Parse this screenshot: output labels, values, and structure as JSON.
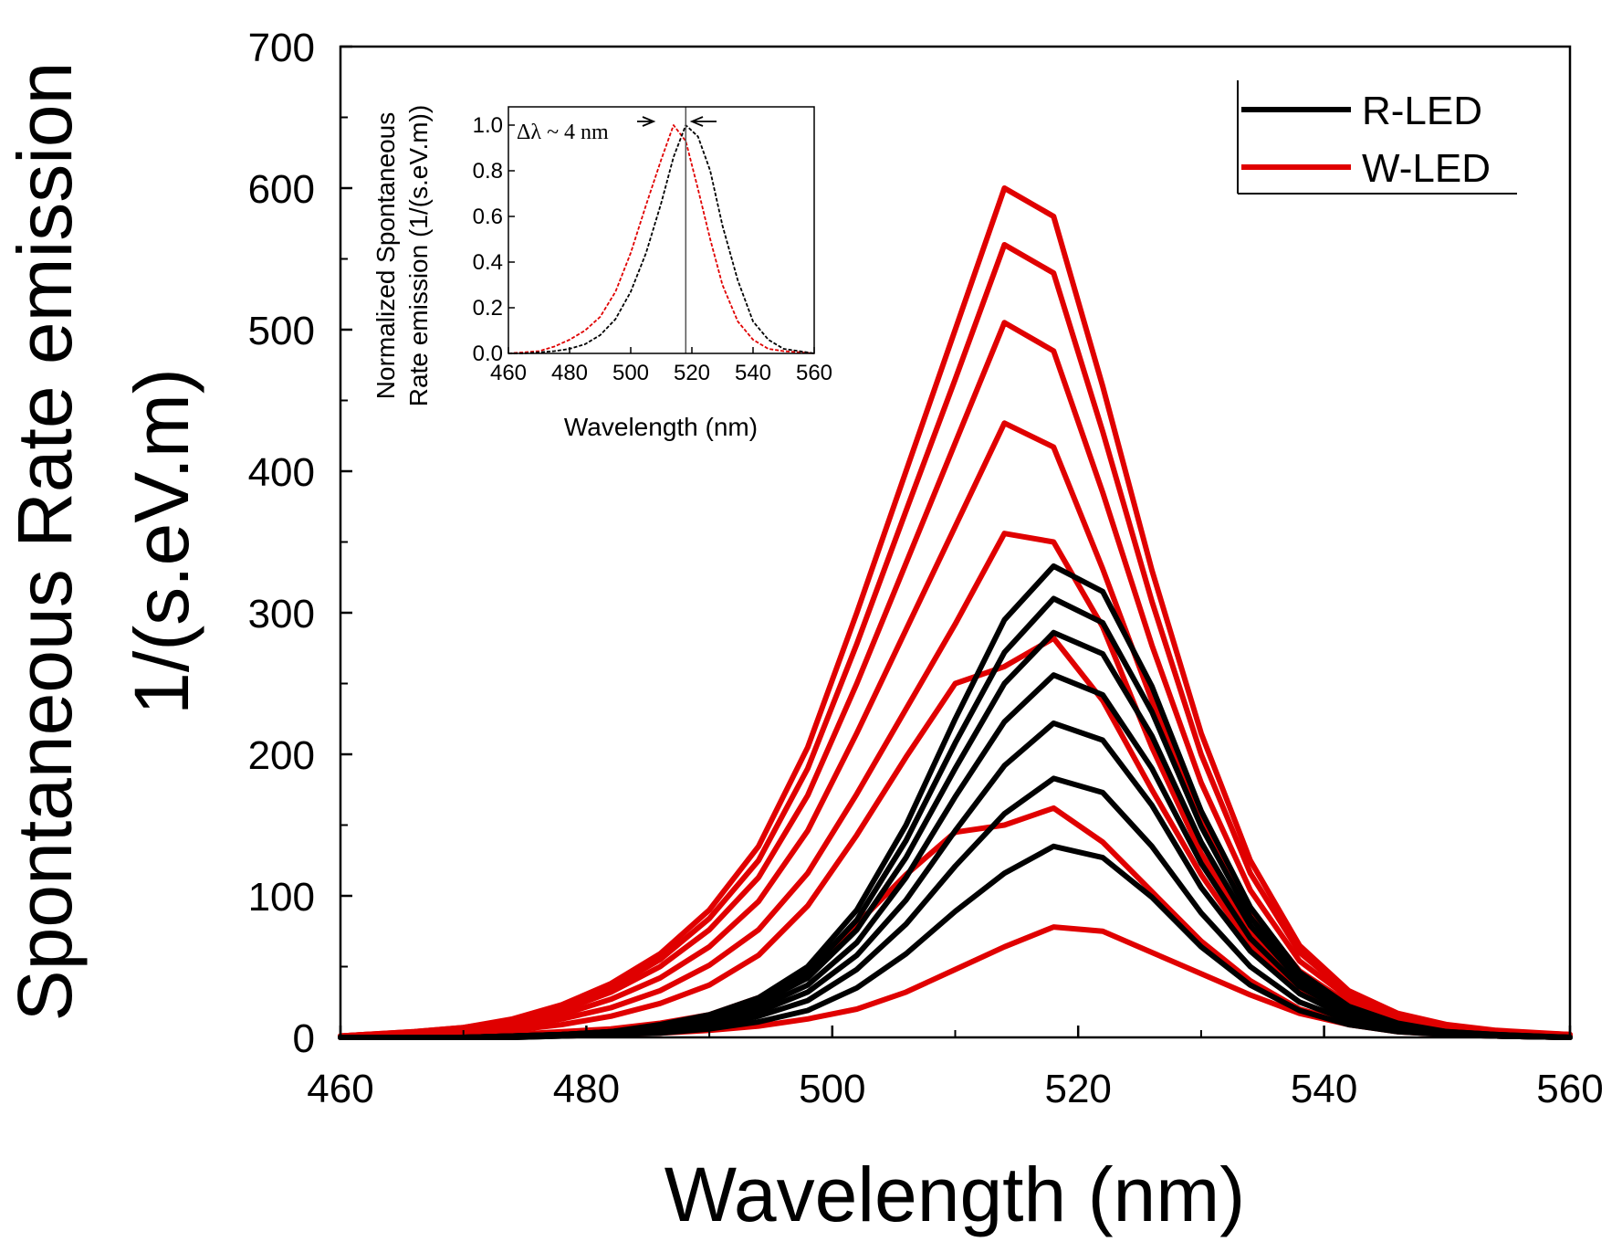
{
  "chart_data": [
    {
      "type": "line",
      "role": "main",
      "title": "",
      "xlabel": "Wavelength (nm)",
      "ylabel_lines": [
        "Spontaneous Rate emission",
        "1/(s.eV.m)"
      ],
      "xlim": [
        460,
        560
      ],
      "ylim": [
        0,
        700
      ],
      "xticks": [
        460,
        480,
        500,
        520,
        540,
        560
      ],
      "yticks": [
        0,
        100,
        200,
        300,
        400,
        500,
        600,
        700
      ],
      "legend": {
        "position": "top-right",
        "items": [
          {
            "label": "R-LED",
            "color": "#000000"
          },
          {
            "label": "W-LED",
            "color": "#e00000"
          }
        ]
      },
      "x": [
        460,
        462,
        466,
        470,
        474,
        478,
        482,
        486,
        490,
        494,
        498,
        502,
        506,
        510,
        514,
        518,
        522,
        526,
        530,
        534,
        538,
        542,
        546,
        550,
        554,
        560
      ],
      "series": [
        {
          "name": "W-LED",
          "color": "#e00000",
          "values": [
            1,
            2,
            4,
            7,
            13,
            23,
            38,
            59,
            90,
            135,
            205,
            300,
            400,
            500,
            600,
            580,
            460,
            330,
            215,
            125,
            65,
            33,
            17,
            9,
            5,
            2
          ]
        },
        {
          "name": "W-LED",
          "color": "#e00000",
          "values": [
            1,
            2,
            4,
            7,
            12,
            21,
            35,
            55,
            84,
            125,
            190,
            278,
            372,
            465,
            560,
            540,
            428,
            308,
            200,
            116,
            60,
            31,
            16,
            8,
            4,
            2
          ]
        },
        {
          "name": "W-LED",
          "color": "#e00000",
          "values": [
            1,
            2,
            3,
            6,
            11,
            19,
            32,
            50,
            76,
            113,
            171,
            250,
            335,
            420,
            505,
            485,
            385,
            277,
            180,
            104,
            54,
            28,
            14,
            7,
            4,
            2
          ]
        },
        {
          "name": "W-LED",
          "color": "#e00000",
          "values": [
            1,
            1,
            3,
            5,
            9,
            16,
            27,
            42,
            64,
            96,
            146,
            215,
            288,
            361,
            434,
            417,
            331,
            238,
            155,
            90,
            47,
            24,
            12,
            6,
            3,
            1
          ]
        },
        {
          "name": "W-LED",
          "color": "#e00000",
          "values": [
            0,
            1,
            2,
            4,
            7,
            13,
            21,
            33,
            51,
            76,
            116,
            172,
            232,
            292,
            356,
            350,
            290,
            205,
            130,
            75,
            40,
            20,
            10,
            5,
            3,
            1
          ]
        },
        {
          "name": "W-LED",
          "color": "#e00000",
          "values": [
            0,
            1,
            2,
            3,
            5,
            9,
            15,
            24,
            37,
            58,
            93,
            143,
            198,
            250,
            262,
            282,
            238,
            175,
            115,
            65,
            33,
            16,
            8,
            4,
            2,
            1
          ]
        },
        {
          "name": "W-LED",
          "color": "#e00000",
          "values": [
            0,
            0,
            1,
            1,
            2,
            4,
            6,
            10,
            16,
            28,
            48,
            80,
            115,
            145,
            150,
            162,
            138,
            103,
            68,
            40,
            20,
            10,
            5,
            2,
            1,
            0
          ]
        },
        {
          "name": "W-LED",
          "color": "#e00000",
          "values": [
            0,
            0,
            0,
            0,
            1,
            1,
            2,
            3,
            5,
            8,
            13,
            20,
            32,
            48,
            64,
            78,
            75,
            60,
            45,
            30,
            17,
            9,
            4,
            2,
            1,
            0
          ]
        },
        {
          "name": "R-LED",
          "color": "#000000",
          "values": [
            0,
            0,
            0,
            0,
            1,
            2,
            4,
            9,
            16,
            28,
            50,
            90,
            150,
            225,
            295,
            333,
            315,
            248,
            160,
            92,
            46,
            22,
            10,
            4,
            2,
            0
          ]
        },
        {
          "name": "R-LED",
          "color": "#000000",
          "values": [
            0,
            0,
            0,
            0,
            1,
            2,
            4,
            8,
            15,
            26,
            46,
            83,
            139,
            208,
            272,
            310,
            293,
            230,
            149,
            85,
            43,
            20,
            9,
            4,
            2,
            0
          ]
        },
        {
          "name": "R-LED",
          "color": "#000000",
          "values": [
            0,
            0,
            0,
            0,
            1,
            2,
            4,
            7,
            13,
            24,
            42,
            76,
            127,
            190,
            250,
            286,
            271,
            213,
            138,
            79,
            40,
            19,
            8,
            3,
            1,
            0
          ]
        },
        {
          "name": "R-LED",
          "color": "#000000",
          "values": [
            0,
            0,
            0,
            0,
            1,
            2,
            3,
            6,
            12,
            21,
            37,
            67,
            113,
            170,
            223,
            256,
            242,
            190,
            123,
            70,
            36,
            17,
            7,
            3,
            1,
            0
          ]
        },
        {
          "name": "R-LED",
          "color": "#000000",
          "values": [
            0,
            0,
            0,
            0,
            1,
            1,
            3,
            5,
            10,
            18,
            32,
            58,
            97,
            146,
            192,
            222,
            210,
            164,
            106,
            61,
            31,
            14,
            6,
            3,
            1,
            0
          ]
        },
        {
          "name": "R-LED",
          "color": "#000000",
          "values": [
            0,
            0,
            0,
            0,
            0,
            1,
            2,
            4,
            8,
            15,
            26,
            48,
            80,
            121,
            158,
            183,
            173,
            135,
            88,
            50,
            25,
            12,
            5,
            2,
            1,
            0
          ]
        },
        {
          "name": "R-LED",
          "color": "#000000",
          "values": [
            0,
            0,
            0,
            0,
            0,
            1,
            2,
            3,
            6,
            11,
            19,
            35,
            59,
            89,
            116,
            135,
            127,
            99,
            64,
            37,
            19,
            9,
            4,
            2,
            1,
            0
          ]
        }
      ]
    },
    {
      "type": "line",
      "role": "inset",
      "title": "",
      "xlabel": "Wavelength (nm)",
      "ylabel_lines": [
        "Normalized Spontaneous",
        "Rate emission (1/(s.eV.m))"
      ],
      "xlim": [
        460,
        560
      ],
      "ylim": [
        0,
        1.08
      ],
      "xticks": [
        460,
        480,
        500,
        520,
        540,
        560
      ],
      "yticks": [
        0.0,
        0.2,
        0.4,
        0.6,
        0.8,
        1.0
      ],
      "ytick_labels": [
        "0.0",
        "0.2",
        "0.4",
        "0.6",
        "0.8",
        "1.0"
      ],
      "annotation": "Δλ ~ 4 nm",
      "marker_x": 518,
      "x": [
        460,
        465,
        470,
        475,
        480,
        485,
        490,
        495,
        500,
        505,
        510,
        514,
        518,
        522,
        526,
        530,
        535,
        540,
        545,
        550,
        555,
        560
      ],
      "series": [
        {
          "name": "W-LED",
          "color": "#e00000",
          "values": [
            0.0,
            0.005,
            0.01,
            0.03,
            0.06,
            0.1,
            0.16,
            0.27,
            0.44,
            0.65,
            0.85,
            1.0,
            0.93,
            0.72,
            0.5,
            0.3,
            0.14,
            0.06,
            0.02,
            0.01,
            0.005,
            0.0
          ]
        },
        {
          "name": "R-LED",
          "color": "#000000",
          "values": [
            0.0,
            0.0,
            0.005,
            0.01,
            0.02,
            0.04,
            0.08,
            0.15,
            0.27,
            0.44,
            0.66,
            0.86,
            1.0,
            0.95,
            0.8,
            0.56,
            0.32,
            0.14,
            0.06,
            0.02,
            0.01,
            0.0
          ]
        }
      ]
    }
  ]
}
